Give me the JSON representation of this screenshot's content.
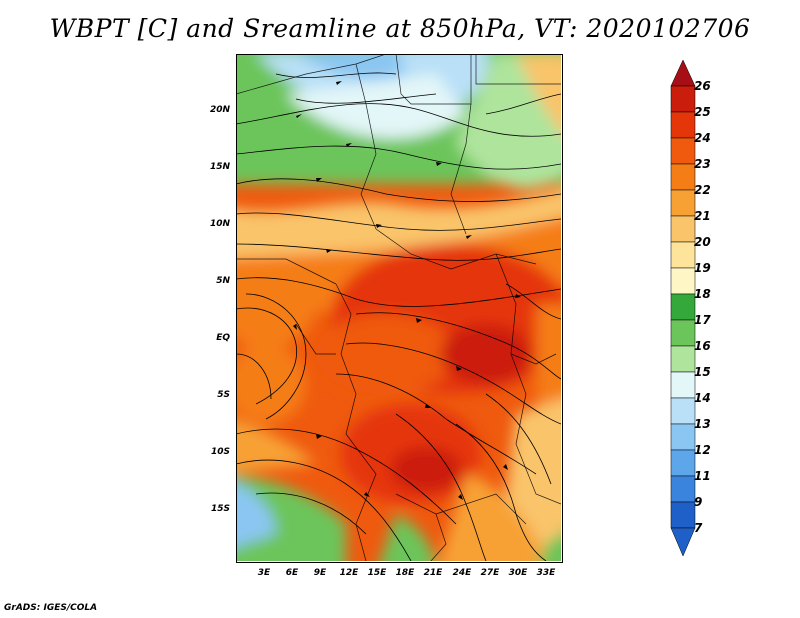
{
  "title": "WBPT [C] and Sreamline at 850hPa, VT: 2020102706",
  "footer": "GrADS: IGES/COLA",
  "map": {
    "lat_labels": [
      "20N",
      "15N",
      "10N",
      "5N",
      "EQ",
      "5S",
      "10S",
      "15S"
    ],
    "lon_labels": [
      "3E",
      "6E",
      "9E",
      "12E",
      "15E",
      "18E",
      "21E",
      "24E",
      "27E",
      "30E",
      "33E"
    ]
  },
  "colorbar": {
    "labels": [
      "26",
      "25",
      "24",
      "23",
      "22",
      "21",
      "20",
      "19",
      "18",
      "17",
      "16",
      "15",
      "14",
      "13",
      "12",
      "11",
      "9",
      "7"
    ],
    "colors": {
      "c26": "#a50f15",
      "c25": "#cb1d0c",
      "c24": "#e5360a",
      "c23": "#ef5a0f",
      "c22": "#f57d16",
      "c21": "#f7a135",
      "c20": "#f9c46a",
      "c19": "#fde49a",
      "c18": "#fff6c6",
      "c17": "#35a83b",
      "c16": "#6cc55a",
      "c15": "#aee49c",
      "c14": "#e3f6f8",
      "c13": "#b9e0f7",
      "c12": "#8bc6f2",
      "c11": "#5ea6ea",
      "c9": "#3b84de",
      "c7": "#1f5fc8"
    }
  }
}
